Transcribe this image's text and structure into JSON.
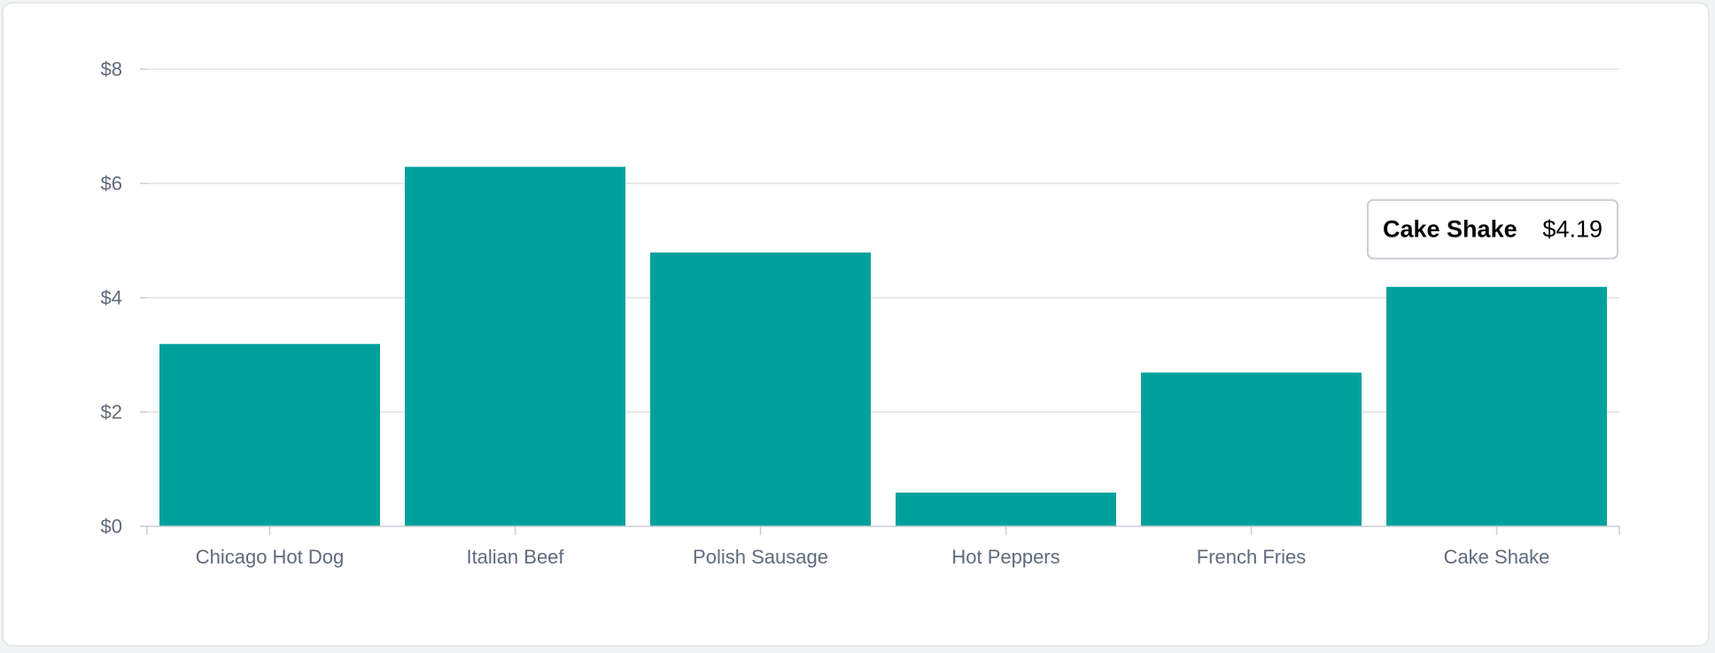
{
  "chart_data": {
    "type": "bar",
    "categories": [
      "Chicago Hot Dog",
      "Italian Beef",
      "Polish Sausage",
      "Hot Peppers",
      "French Fries",
      "Cake Shake"
    ],
    "values": [
      3.19,
      6.29,
      4.79,
      0.59,
      2.69,
      4.19
    ],
    "title": "",
    "xlabel": "",
    "ylabel": "",
    "ylim": [
      0,
      8
    ],
    "yticks": [
      0,
      2,
      4,
      6,
      8
    ],
    "ytick_labels": [
      "$0",
      "$2",
      "$4",
      "$6",
      "$8"
    ],
    "grid": true,
    "bar_color": "#00a19d",
    "tooltip": {
      "category": "Cake Shake",
      "label": "Cake Shake",
      "value_text": "$4.19"
    }
  }
}
